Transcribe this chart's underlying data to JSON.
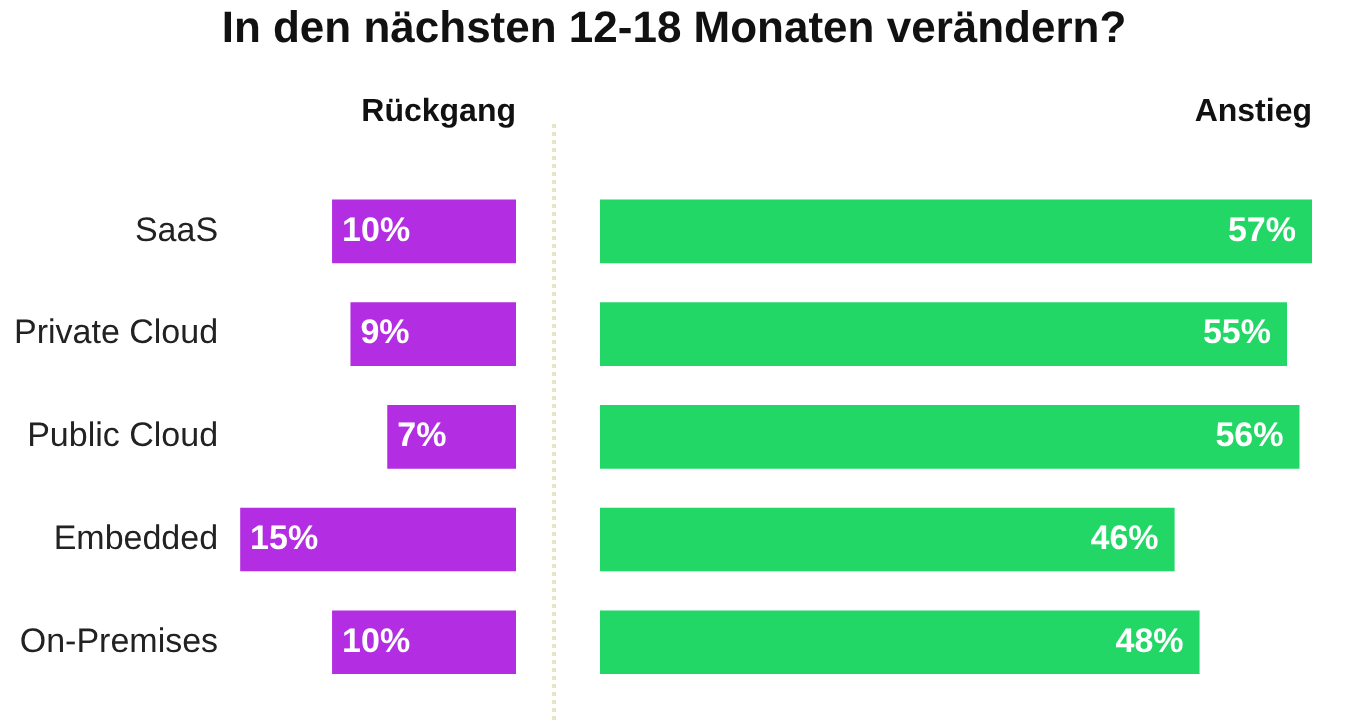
{
  "chart_data": [
    {
      "type": "bar",
      "title": "In den nächsten 12-18 Monaten verändern?",
      "orientation": "horizontal",
      "legend": false,
      "xlim": [
        15,
        0
      ],
      "categories": [
        "SaaS",
        "Private Cloud",
        "Public Cloud",
        "Embedded",
        "On-Premises"
      ],
      "series": [
        {
          "name": "Rückgang",
          "color": "#b32ee3",
          "values": [
            10,
            9,
            7,
            15,
            10
          ],
          "value_labels": [
            "10%",
            "9%",
            "7%",
            "15%",
            "10%"
          ]
        }
      ]
    },
    {
      "type": "bar",
      "orientation": "horizontal",
      "legend": false,
      "xlim": [
        0,
        57
      ],
      "categories": [
        null,
        null,
        null,
        null,
        null
      ],
      "series": [
        {
          "name": "Anstieg",
          "color": "#22d766",
          "values": [
            57,
            55,
            56,
            46,
            48
          ],
          "value_labels": [
            "57%",
            "55%",
            "56%",
            "46%",
            "48%"
          ]
        }
      ]
    }
  ]
}
